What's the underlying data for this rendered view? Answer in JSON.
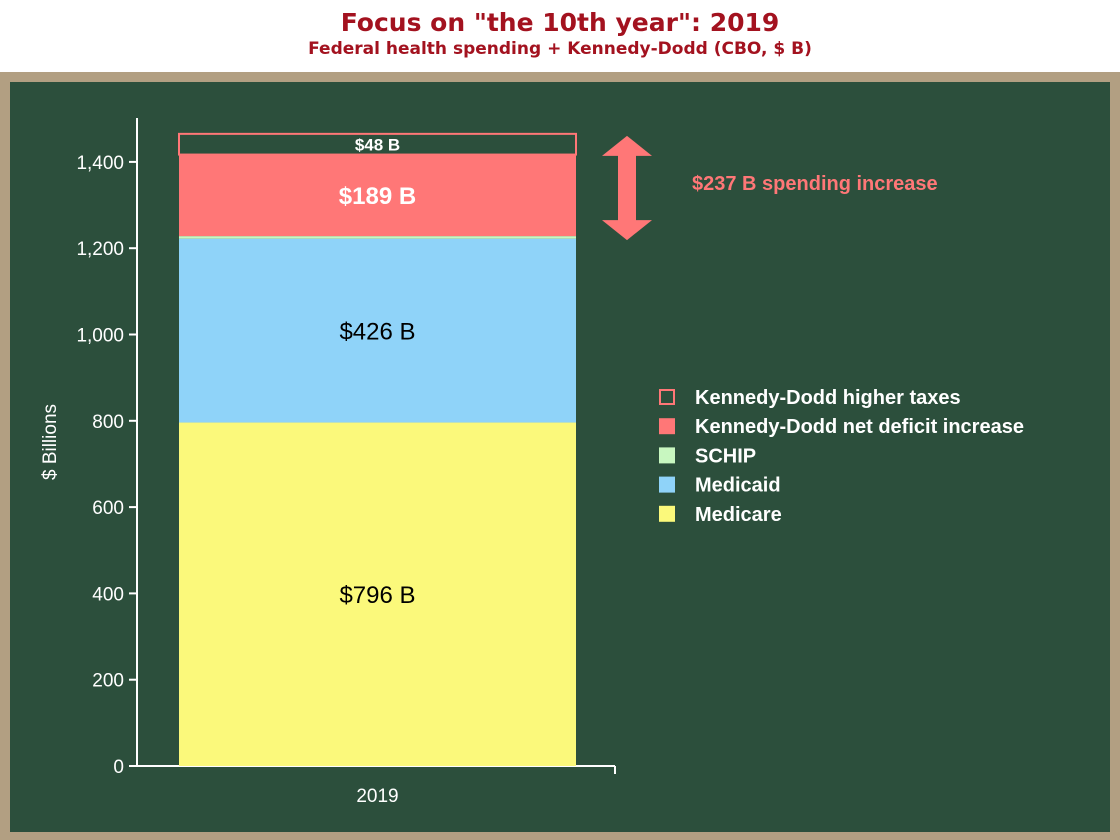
{
  "title": "Focus on \"the 10th year\": 2019",
  "subtitle": "Federal health spending + Kennedy-Dodd (CBO, $ B)",
  "chart_data": {
    "type": "bar",
    "stacked": true,
    "categories": [
      "2019"
    ],
    "ylabel": "$ Billions",
    "ylim": [
      0,
      1500
    ],
    "yticks": [
      0,
      200,
      400,
      600,
      800,
      1000,
      1200,
      1400
    ],
    "ytick_labels": [
      "0",
      "200",
      "400",
      "600",
      "800",
      "1,000",
      "1,200",
      "1,400"
    ],
    "grid": false,
    "legend_position": "right",
    "series": [
      {
        "name": "Medicare",
        "values": [
          796
        ],
        "label": "$796 B",
        "color": "#fbf97b",
        "label_color": "#000000",
        "label_bold": false,
        "label_size": 24
      },
      {
        "name": "Medicaid",
        "values": [
          426
        ],
        "label": "$426 B",
        "color": "#8fd3f9",
        "label_color": "#000000",
        "label_bold": false,
        "label_size": 24
      },
      {
        "name": "SCHIP",
        "values": [
          6
        ],
        "label": "",
        "color": "#c8f7c0",
        "label_color": "#000000",
        "label_bold": false,
        "label_size": 0
      },
      {
        "name": "Kennedy-Dodd net deficit increase",
        "values": [
          189
        ],
        "label": "$189 B",
        "color": "#ff7777",
        "label_color": "#ffffff",
        "label_bold": true,
        "label_size": 24
      },
      {
        "name": "Kennedy-Dodd higher taxes",
        "values": [
          48
        ],
        "label": "$48 B",
        "color": "none",
        "stroke": "#ff7777",
        "label_color": "#ffffff",
        "label_bold": true,
        "label_size": 17
      }
    ],
    "legend_order": [
      "Kennedy-Dodd higher taxes",
      "Kennedy-Dodd net deficit increase",
      "SCHIP",
      "Medicaid",
      "Medicare"
    ],
    "annotation": {
      "text": "$237 B spending increase",
      "color": "#ff7777",
      "range": [
        1228,
        1465
      ]
    }
  }
}
